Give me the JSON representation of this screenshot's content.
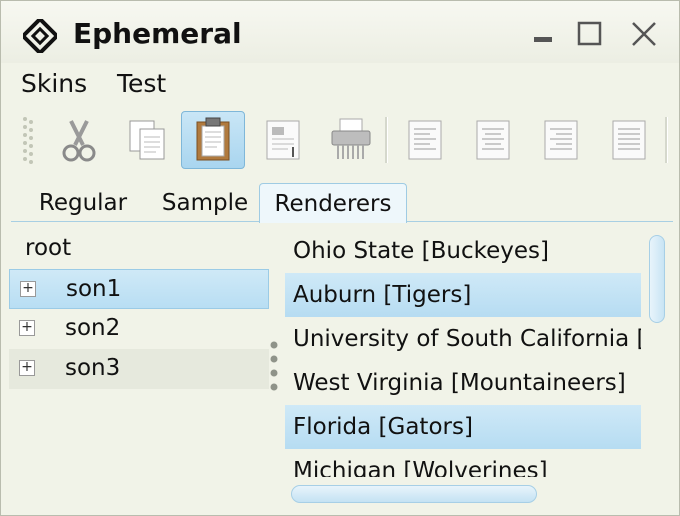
{
  "window": {
    "title": "Ephemeral"
  },
  "menu": {
    "items": [
      "Skins",
      "Test"
    ]
  },
  "toolbar": {
    "buttons": [
      {
        "icon": "cut-icon"
      },
      {
        "icon": "copy-icon"
      },
      {
        "icon": "paste-icon",
        "active": true
      },
      {
        "icon": "document-icon"
      },
      {
        "icon": "shredder-icon"
      },
      {
        "icon": "align-left-icon"
      },
      {
        "icon": "align-center-icon"
      },
      {
        "icon": "align-right-icon"
      },
      {
        "icon": "align-justify-icon"
      }
    ]
  },
  "tabs": [
    "Regular",
    "Sample",
    "Renderers"
  ],
  "active_tab": "Renderers",
  "tree": {
    "root": "root",
    "children": [
      "son1",
      "son2",
      "son3"
    ],
    "selected": "son1"
  },
  "list": {
    "items": [
      "Ohio State [Buckeyes]",
      "Auburn [Tigers]",
      "University of South California [Trojans]",
      "West Virginia [Mountaineers]",
      "Florida [Gators]",
      "Michigan [Wolverines]"
    ],
    "selected": [
      "Auburn [Tigers]",
      "Florida [Gators]"
    ]
  },
  "colors": {
    "selection": "#b8def3",
    "accent": "#7fb7d9"
  }
}
